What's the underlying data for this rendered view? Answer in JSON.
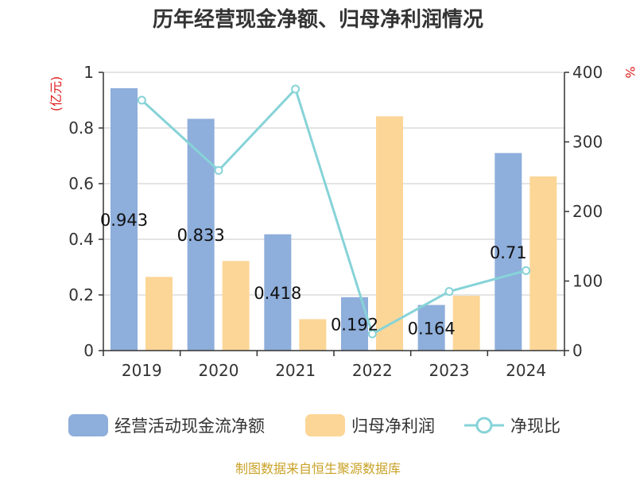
{
  "colors": {
    "cash_flow": "#8eaedb",
    "net_profit": "#fcd697",
    "ratio": "#86d3d8",
    "source": "#c9a227",
    "unit": "#e02020"
  },
  "chart_data": {
    "type": "bar",
    "title": "历年经营现金净额、归母净利润情况",
    "categories": [
      "2019",
      "2020",
      "2021",
      "2022",
      "2023",
      "2024"
    ],
    "left_axis": {
      "unit": "(亿元)",
      "ylim": [
        0,
        1
      ],
      "ticks": [
        "0",
        "0.2",
        "0.4",
        "0.6",
        "0.8",
        "1"
      ]
    },
    "right_axis": {
      "unit": "%",
      "ylim": [
        0,
        400
      ],
      "ticks": [
        "0",
        "100",
        "200",
        "300",
        "400"
      ]
    },
    "series": [
      {
        "name": "经营活动现金流净额",
        "type": "bar",
        "axis": "left",
        "values": [
          0.943,
          0.833,
          0.418,
          0.192,
          0.164,
          0.71
        ],
        "labels": [
          "0.943",
          "0.833",
          "0.418",
          "0.192",
          "0.164",
          "0.71"
        ]
      },
      {
        "name": "归母净利润",
        "type": "bar",
        "axis": "left",
        "values": [
          0.265,
          0.322,
          0.113,
          0.842,
          0.197,
          0.626
        ]
      },
      {
        "name": "净现比",
        "type": "line",
        "axis": "right",
        "values": [
          360,
          259,
          376,
          24,
          85,
          115
        ]
      }
    ],
    "grid": true,
    "legend_position": "bottom"
  },
  "source": "制图数据来自恒生聚源数据库"
}
